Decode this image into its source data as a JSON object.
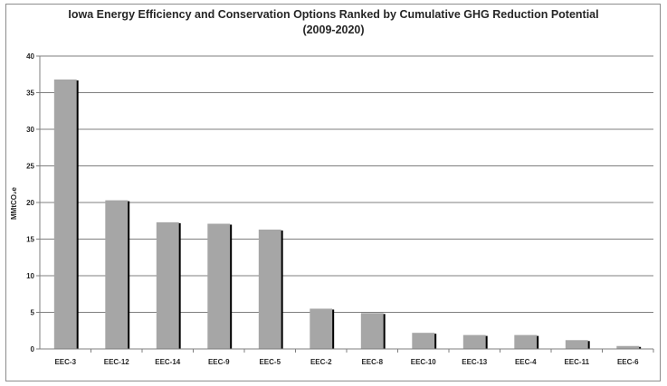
{
  "chart_data": {
    "type": "bar",
    "title_lines": [
      "Iowa Energy Efficiency and Conservation Options Ranked by Cumulative GHG Reduction Potential",
      "(2009-2020)"
    ],
    "xlabel": "",
    "ylabel": "MMtCO₂e",
    "ylim": [
      0,
      40
    ],
    "yticks": [
      0,
      5,
      10,
      15,
      20,
      25,
      30,
      35,
      40
    ],
    "grid": true,
    "legend": "none",
    "bar_color": "#a6a6a6",
    "shadow_color": "#000000",
    "categories": [
      "EEC-3",
      "EEC-12",
      "EEC-14",
      "EEC-9",
      "EEC-5",
      "EEC-2",
      "EEC-8",
      "EEC-10",
      "EEC-13",
      "EEC-4",
      "EEC-11",
      "EEC-6"
    ],
    "values": [
      36.8,
      20.3,
      17.3,
      17.1,
      16.3,
      5.5,
      4.9,
      2.2,
      1.9,
      1.9,
      1.2,
      0.4
    ]
  }
}
